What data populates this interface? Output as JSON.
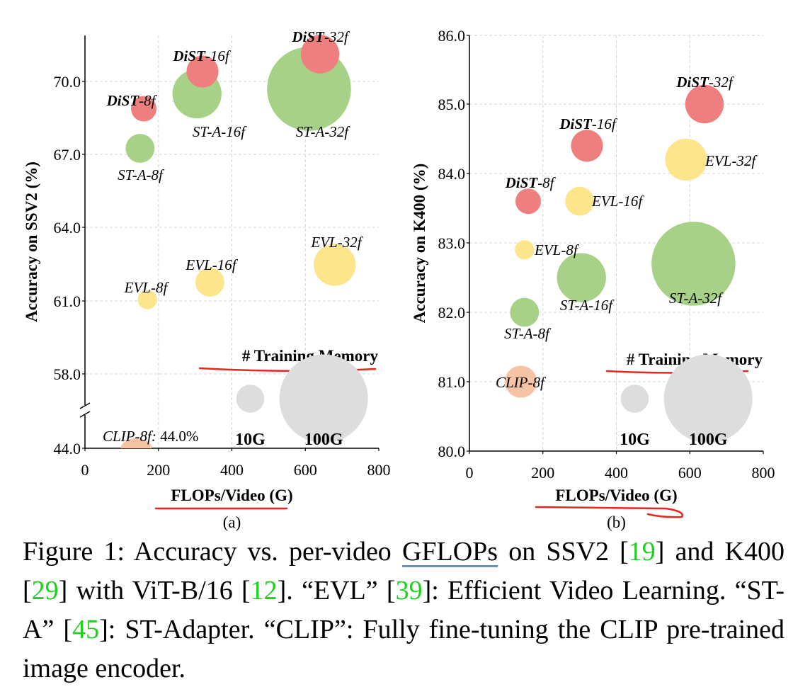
{
  "chart_data": [
    {
      "type": "scatter",
      "panel_label": "(a)",
      "xlabel": "FLOPs/Video (G)",
      "ylabel": "Accuracy on SSV2 (%)",
      "xlim": [
        0,
        800
      ],
      "x_ticks": [
        "0",
        "200",
        "400",
        "600",
        "800"
      ],
      "y_ticks": [
        "44.0",
        "58.0",
        "61.0",
        "64.0",
        "67.0",
        "70.0"
      ],
      "axis_break": "44.0-58.0",
      "grid": true,
      "points": [
        {
          "name_bold": "DiST",
          "name_rest": "-8f",
          "x": 160,
          "y": 68.7,
          "memory": 7,
          "color": "#ef7f7f"
        },
        {
          "name_bold": "DiST",
          "name_rest": "-16f",
          "x": 320,
          "y": 70.2,
          "memory": 11,
          "color": "#ef7f7f"
        },
        {
          "name_bold": "DiST",
          "name_rest": "-32f",
          "x": 640,
          "y": 70.9,
          "memory": 16,
          "color": "#ef7f7f"
        },
        {
          "name_bold": "",
          "name_rest": "ST-A-8f",
          "x": 150,
          "y": 67.1,
          "memory": 9,
          "color": "#a6d186"
        },
        {
          "name_bold": "",
          "name_rest": "ST-A-16f",
          "x": 305,
          "y": 69.3,
          "memory": 26,
          "color": "#a6d186"
        },
        {
          "name_bold": "",
          "name_rest": "ST-A-32f",
          "x": 610,
          "y": 69.5,
          "memory": 76,
          "color": "#a6d186"
        },
        {
          "name_bold": "",
          "name_rest": "EVL-8f",
          "x": 170,
          "y": 61.0,
          "memory": 4,
          "color": "#fde58c"
        },
        {
          "name_bold": "",
          "name_rest": "EVL-16f",
          "x": 340,
          "y": 61.7,
          "memory": 9,
          "color": "#fde58c"
        },
        {
          "name_bold": "",
          "name_rest": "EVL-32f",
          "x": 680,
          "y": 62.4,
          "memory": 19,
          "color": "#fde58c"
        },
        {
          "name_bold": "",
          "name_rest": "CLIP-8f",
          "x": 140,
          "y": 44.0,
          "memory": 11,
          "color": "#f6c3a4"
        }
      ],
      "clip_annotation": "CLIP-8f: 44.0%",
      "legend_title": "# Training Memory",
      "legend_items": [
        {
          "label": "10G",
          "x": 450,
          "memory": 10,
          "color": "#dddddd"
        },
        {
          "label": "100G",
          "x": 650,
          "memory": 100,
          "color": "#dddddd"
        }
      ]
    },
    {
      "type": "scatter",
      "panel_label": "(b)",
      "xlabel": "FLOPs/Video (G)",
      "ylabel": "Accuracy on K400 (%)",
      "xlim": [
        0,
        800
      ],
      "ylim": [
        80.0,
        86.0
      ],
      "x_ticks": [
        "0",
        "200",
        "400",
        "600",
        "800"
      ],
      "y_ticks": [
        "80.0",
        "81.0",
        "82.0",
        "83.0",
        "84.0",
        "85.0",
        "86.0"
      ],
      "grid": true,
      "points": [
        {
          "name_bold": "DiST",
          "name_rest": "-8f",
          "x": 160,
          "y": 83.6,
          "memory": 7,
          "color": "#ef7f7f"
        },
        {
          "name_bold": "DiST",
          "name_rest": "-16f",
          "x": 320,
          "y": 84.4,
          "memory": 11,
          "color": "#ef7f7f"
        },
        {
          "name_bold": "DiST",
          "name_rest": "-32f",
          "x": 640,
          "y": 85.0,
          "memory": 16,
          "color": "#ef7f7f"
        },
        {
          "name_bold": "",
          "name_rest": "ST-A-8f",
          "x": 150,
          "y": 82.0,
          "memory": 9,
          "color": "#a6d186"
        },
        {
          "name_bold": "",
          "name_rest": "ST-A-16f",
          "x": 305,
          "y": 82.5,
          "memory": 26,
          "color": "#a6d186"
        },
        {
          "name_bold": "",
          "name_rest": "ST-A-32f",
          "x": 610,
          "y": 82.7,
          "memory": 76,
          "color": "#a6d186"
        },
        {
          "name_bold": "",
          "name_rest": "EVL-8f",
          "x": 150,
          "y": 82.9,
          "memory": 4,
          "color": "#fde58c"
        },
        {
          "name_bold": "",
          "name_rest": "EVL-16f",
          "x": 300,
          "y": 83.6,
          "memory": 9,
          "color": "#fde58c"
        },
        {
          "name_bold": "",
          "name_rest": "EVL-32f",
          "x": 590,
          "y": 84.2,
          "memory": 19,
          "color": "#fde58c"
        },
        {
          "name_bold": "",
          "name_rest": "CLIP-8f",
          "x": 140,
          "y": 81.0,
          "memory": 11,
          "color": "#f6c3a4"
        }
      ],
      "legend_title": "# Training Memory",
      "legend_items": [
        {
          "label": "10G",
          "x": 450,
          "memory": 10,
          "color": "#dddddd"
        },
        {
          "label": "100G",
          "x": 650,
          "memory": 100,
          "color": "#dddddd"
        }
      ]
    }
  ],
  "annotation_color": "#e8251f",
  "caption": {
    "parts": [
      {
        "text": "Figure 1: Accuracy vs. per-video "
      },
      {
        "text": "GFLOPs",
        "style": "gflops"
      },
      {
        "text": " on SSV2 ["
      },
      {
        "text": "19",
        "style": "cite"
      },
      {
        "text": "] and K400 ["
      },
      {
        "text": "29",
        "style": "cite"
      },
      {
        "text": "] with ViT-B/16 ["
      },
      {
        "text": "12",
        "style": "cite"
      },
      {
        "text": "]. “EVL” ["
      },
      {
        "text": "39",
        "style": "cite"
      },
      {
        "text": "]: Efficient Video Learning. “ST-A” ["
      },
      {
        "text": "45",
        "style": "cite"
      },
      {
        "text": "]: ST-Adapter. “CLIP”: Fully fine-tuning the CLIP pre-trained image encoder."
      }
    ]
  }
}
